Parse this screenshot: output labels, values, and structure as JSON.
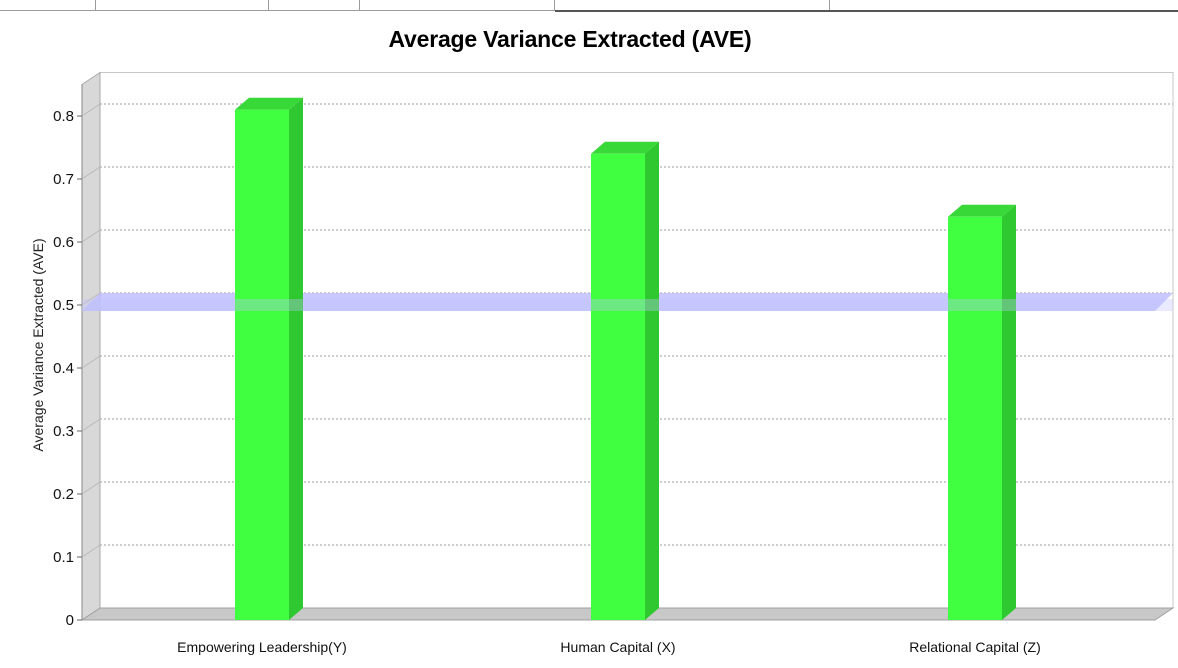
{
  "chart_data": {
    "type": "bar",
    "title": "Average Variance Extracted (AVE)",
    "xlabel": "",
    "ylabel": "Average Variance Extracted (AVE)",
    "categories": [
      "Empowering Leadership(Y)",
      "Human Capital (X)",
      "Relational Capital (Z)"
    ],
    "values": [
      0.81,
      0.74,
      0.64
    ],
    "ylim": [
      0,
      0.85
    ],
    "yticks": [
      0,
      0.1,
      0.2,
      0.3,
      0.4,
      0.5,
      0.6,
      0.7,
      0.8
    ],
    "ytick_labels": [
      "0",
      "0.1",
      "0.2",
      "0.3",
      "0.4",
      "0.5",
      "0.6",
      "0.7",
      "0.8"
    ],
    "reference_line": 0.5,
    "grid": true,
    "bar_color": "#40ff40",
    "bar_side_color": "#30c830",
    "reference_line_color": "#c0c0ff"
  }
}
